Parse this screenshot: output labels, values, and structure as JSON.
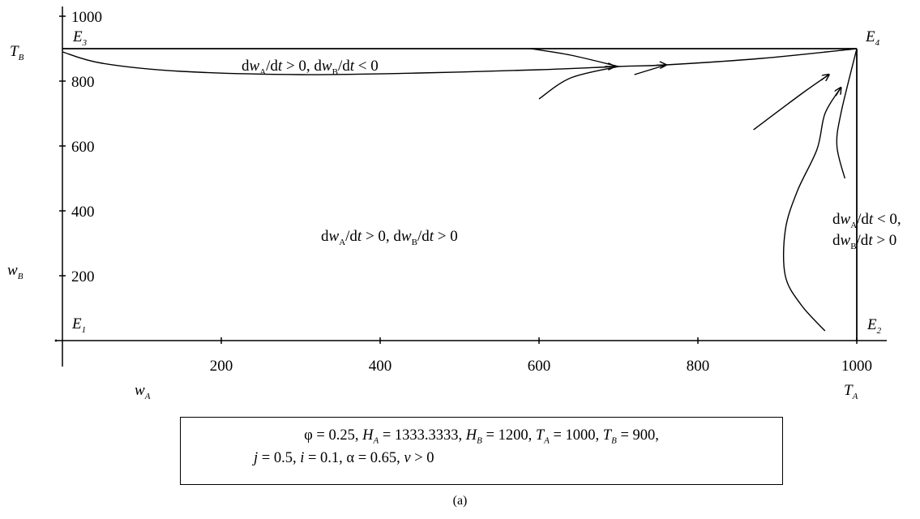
{
  "chart_data": {
    "type": "line",
    "title": "",
    "xlabel": "wA",
    "ylabel": "wB",
    "xlim": [
      0,
      1000
    ],
    "ylim": [
      0,
      1000
    ],
    "x_ticks": [
      200,
      400,
      600,
      800,
      1000
    ],
    "y_ticks": [
      200,
      400,
      600,
      800,
      1000
    ],
    "x_tick_labels": [
      "200",
      "400",
      "600",
      "800",
      "1000"
    ],
    "y_tick_labels": [
      "200",
      "400",
      "600",
      "800",
      "1000"
    ],
    "x_axis_title": {
      "base": "w",
      "sub": "A"
    },
    "y_axis_title": {
      "base": "w",
      "sub": "B"
    },
    "TA_label": {
      "base": "T",
      "sub": "A"
    },
    "TB_label": {
      "base": "T",
      "sub": "B"
    },
    "TA": 1000,
    "TB": 900,
    "equilibria": [
      {
        "label": "E1",
        "base": "E",
        "sub": "1",
        "x": 0,
        "y": 0
      },
      {
        "label": "E2",
        "base": "E",
        "sub": "2",
        "x": 1000,
        "y": 0
      },
      {
        "label": "E3",
        "base": "E",
        "sub": "3",
        "x": 0,
        "y": 900
      },
      {
        "label": "E4",
        "base": "E",
        "sub": "4",
        "x": 1000,
        "y": 900
      }
    ],
    "boundary_lines": [
      {
        "x": [
          0,
          1000
        ],
        "y": [
          900,
          900
        ]
      },
      {
        "x": [
          1000,
          1000
        ],
        "y": [
          0,
          900
        ]
      }
    ],
    "trajectories": [
      {
        "x": [
          0,
          50,
          150,
          300,
          450,
          600,
          700,
          760,
          880,
          1000
        ],
        "y": [
          890,
          855,
          830,
          820,
          825,
          835,
          845,
          850,
          870,
          900
        ],
        "arrows": [
          [
            695,
            845
          ],
          [
            760,
            850
          ]
        ]
      },
      {
        "x": [
          590,
          640,
          700
        ],
        "y": [
          900,
          880,
          845
        ],
        "arrows": []
      },
      {
        "x": [
          600,
          640,
          700
        ],
        "y": [
          745,
          810,
          845
        ],
        "arrows": []
      },
      {
        "x": [
          720,
          760
        ],
        "y": [
          820,
          850
        ],
        "arrows": []
      },
      {
        "x": [
          870,
          930,
          965
        ],
        "y": [
          650,
          760,
          820
        ],
        "arrows": [
          [
            965,
            820
          ]
        ]
      },
      {
        "x": [
          960,
          930,
          910,
          910,
          925,
          950,
          960,
          980
        ],
        "y": [
          30,
          110,
          200,
          340,
          460,
          590,
          700,
          780
        ],
        "arrows": [
          [
            980,
            780
          ]
        ]
      },
      {
        "x": [
          985,
          975,
          980,
          1000
        ],
        "y": [
          500,
          600,
          700,
          900
        ],
        "arrows": []
      }
    ],
    "region_labels": [
      {
        "lines": [
          [
            {
              "t": "d"
            },
            {
              "t": "w",
              "i": 1
            },
            {
              "t": "A",
              "s": 1
            },
            {
              "t": "/d"
            },
            {
              "t": "t",
              "i": 1
            },
            {
              "t": " > 0, d"
            },
            {
              "t": "w",
              "i": 1
            },
            {
              "t": "B",
              "s": 1
            },
            {
              "t": "/d"
            },
            {
              "t": "t",
              "i": 1
            },
            {
              "t": " < 0"
            }
          ]
        ]
      },
      {
        "lines": [
          [
            {
              "t": "d"
            },
            {
              "t": "w",
              "i": 1
            },
            {
              "t": "A",
              "s": 1
            },
            {
              "t": "/d"
            },
            {
              "t": "t",
              "i": 1
            },
            {
              "t": " > 0, d"
            },
            {
              "t": "w",
              "i": 1
            },
            {
              "t": "B",
              "s": 1
            },
            {
              "t": "/d"
            },
            {
              "t": "t",
              "i": 1
            },
            {
              "t": " > 0"
            }
          ]
        ]
      },
      {
        "lines": [
          [
            {
              "t": "d"
            },
            {
              "t": "w",
              "i": 1
            },
            {
              "t": "A",
              "s": 1
            },
            {
              "t": "/d"
            },
            {
              "t": "t",
              "i": 1
            },
            {
              "t": " < 0,"
            }
          ],
          [
            {
              "t": "d"
            },
            {
              "t": "w",
              "i": 1
            },
            {
              "t": "B",
              "s": 1
            },
            {
              "t": "/d"
            },
            {
              "t": "t",
              "i": 1
            },
            {
              "t": " > 0"
            }
          ]
        ]
      }
    ]
  },
  "params": {
    "line1": "φ = 0.25, H_A = 1333.3333, H_B = 1200, T_A = 1000, T_B = 900,",
    "line2": "j = 0.5, i = 0.1, α = 0.65, v > 0"
  },
  "caption": "(a)"
}
